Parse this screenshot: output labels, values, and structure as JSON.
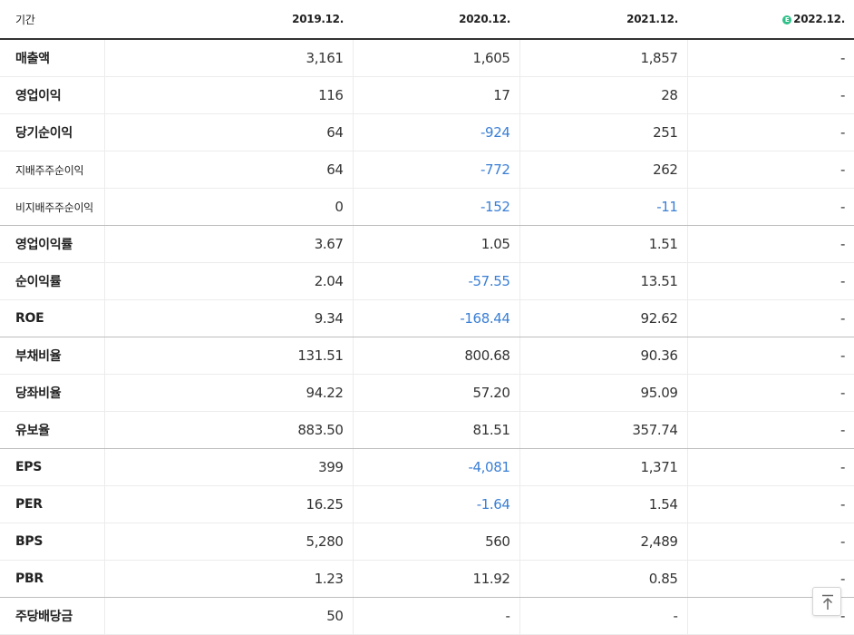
{
  "header": {
    "period_label": "기간",
    "years": [
      "2019.12.",
      "2020.12.",
      "2021.12.",
      "2022.12."
    ],
    "estimate_icon": "E"
  },
  "rows": [
    {
      "label": "매출액",
      "values": [
        "3,161",
        "1,605",
        "1,857",
        "-"
      ],
      "negative": [
        false,
        false,
        false,
        false
      ]
    },
    {
      "label": "영업이익",
      "values": [
        "116",
        "17",
        "28",
        "-"
      ],
      "negative": [
        false,
        false,
        false,
        false
      ]
    },
    {
      "label": "당기순이익",
      "values": [
        "64",
        "-924",
        "251",
        "-"
      ],
      "negative": [
        false,
        true,
        false,
        false
      ]
    },
    {
      "label": "지배주주순이익",
      "values": [
        "64",
        "-772",
        "262",
        "-"
      ],
      "negative": [
        false,
        true,
        false,
        false
      ]
    },
    {
      "label": "비지배주주순이익",
      "values": [
        "0",
        "-152",
        "-11",
        "-"
      ],
      "negative": [
        false,
        true,
        true,
        false
      ]
    },
    {
      "label": "영업이익률",
      "values": [
        "3.67",
        "1.05",
        "1.51",
        "-"
      ],
      "negative": [
        false,
        false,
        false,
        false
      ]
    },
    {
      "label": "순이익률",
      "values": [
        "2.04",
        "-57.55",
        "13.51",
        "-"
      ],
      "negative": [
        false,
        true,
        false,
        false
      ]
    },
    {
      "label": "ROE",
      "values": [
        "9.34",
        "-168.44",
        "92.62",
        "-"
      ],
      "negative": [
        false,
        true,
        false,
        false
      ]
    },
    {
      "label": "부채비율",
      "values": [
        "131.51",
        "800.68",
        "90.36",
        "-"
      ],
      "negative": [
        false,
        false,
        false,
        false
      ]
    },
    {
      "label": "당좌비율",
      "values": [
        "94.22",
        "57.20",
        "95.09",
        "-"
      ],
      "negative": [
        false,
        false,
        false,
        false
      ]
    },
    {
      "label": "유보율",
      "values": [
        "883.50",
        "81.51",
        "357.74",
        "-"
      ],
      "negative": [
        false,
        false,
        false,
        false
      ]
    },
    {
      "label": "EPS",
      "values": [
        "399",
        "-4,081",
        "1,371",
        "-"
      ],
      "negative": [
        false,
        true,
        false,
        false
      ]
    },
    {
      "label": "PER",
      "values": [
        "16.25",
        "-1.64",
        "1.54",
        "-"
      ],
      "negative": [
        false,
        true,
        false,
        false
      ]
    },
    {
      "label": "BPS",
      "values": [
        "5,280",
        "560",
        "2,489",
        "-"
      ],
      "negative": [
        false,
        false,
        false,
        false
      ]
    },
    {
      "label": "PBR",
      "values": [
        "1.23",
        "11.92",
        "0.85",
        "-"
      ],
      "negative": [
        false,
        false,
        false,
        false
      ]
    },
    {
      "label": "주당배당금",
      "values": [
        "50",
        "-",
        "-",
        "-"
      ],
      "negative": [
        false,
        false,
        false,
        false
      ]
    }
  ],
  "scroll_top_icon": "arrow-up-to-top-icon",
  "colors": {
    "negative": "#3a7fd5",
    "estimate": "#2fc08a",
    "text": "#333333"
  }
}
